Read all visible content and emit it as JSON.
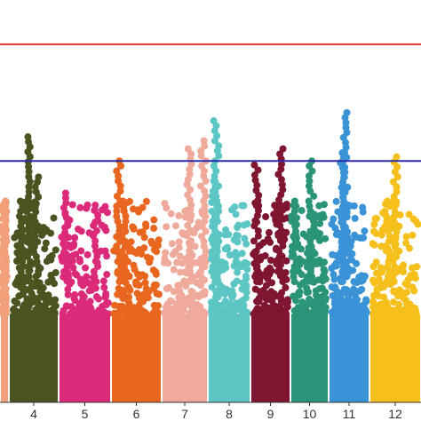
{
  "chart_data": {
    "type": "scatter",
    "subtype": "manhattan",
    "title": "",
    "xlabel": "",
    "ylabel": "",
    "grid": false,
    "legend": "none",
    "ylim": [
      0,
      10
    ],
    "thresholds": [
      {
        "value": 8.9,
        "color": "#e0302a"
      },
      {
        "value": 6.0,
        "color": "#2b2ba6"
      }
    ],
    "chromosomes": [
      {
        "label": "",
        "color": "#f2a07b",
        "top_points": [
          {
            "pos": 0.5,
            "value": 5.0
          }
        ]
      },
      {
        "label": "4",
        "color": "#4b5320",
        "top_points": [
          {
            "pos": 0.4,
            "value": 6.6
          },
          {
            "pos": 0.55,
            "value": 5.6
          },
          {
            "pos": 0.25,
            "value": 5.0
          }
        ]
      },
      {
        "label": "5",
        "color": "#dc2a7a",
        "top_points": [
          {
            "pos": 0.15,
            "value": 5.2
          },
          {
            "pos": 0.7,
            "value": 4.9
          }
        ]
      },
      {
        "label": "6",
        "color": "#e8661f",
        "top_points": [
          {
            "pos": 0.15,
            "value": 6.0
          },
          {
            "pos": 0.25,
            "value": 5.0
          }
        ]
      },
      {
        "label": "7",
        "color": "#f0aa9c",
        "top_points": [
          {
            "pos": 0.6,
            "value": 6.3
          },
          {
            "pos": 0.9,
            "value": 6.5
          }
        ]
      },
      {
        "label": "8",
        "color": "#5cc6c4",
        "top_points": [
          {
            "pos": 0.2,
            "value": 7.0
          },
          {
            "pos": 0.15,
            "value": 5.5
          }
        ]
      },
      {
        "label": "9",
        "color": "#7f1530",
        "top_points": [
          {
            "pos": 0.75,
            "value": 6.3
          },
          {
            "pos": 0.15,
            "value": 5.9
          }
        ]
      },
      {
        "label": "10",
        "color": "#2a9478",
        "top_points": [
          {
            "pos": 0.55,
            "value": 6.0
          },
          {
            "pos": 0.1,
            "value": 5.0
          }
        ]
      },
      {
        "label": "11",
        "color": "#3a93d6",
        "top_points": [
          {
            "pos": 0.4,
            "value": 7.2
          },
          {
            "pos": 0.35,
            "value": 6.2
          }
        ]
      },
      {
        "label": "12",
        "color": "#f5bf1c",
        "top_points": [
          {
            "pos": 0.5,
            "value": 6.1
          },
          {
            "pos": 0.35,
            "value": 5.0
          }
        ]
      }
    ]
  }
}
